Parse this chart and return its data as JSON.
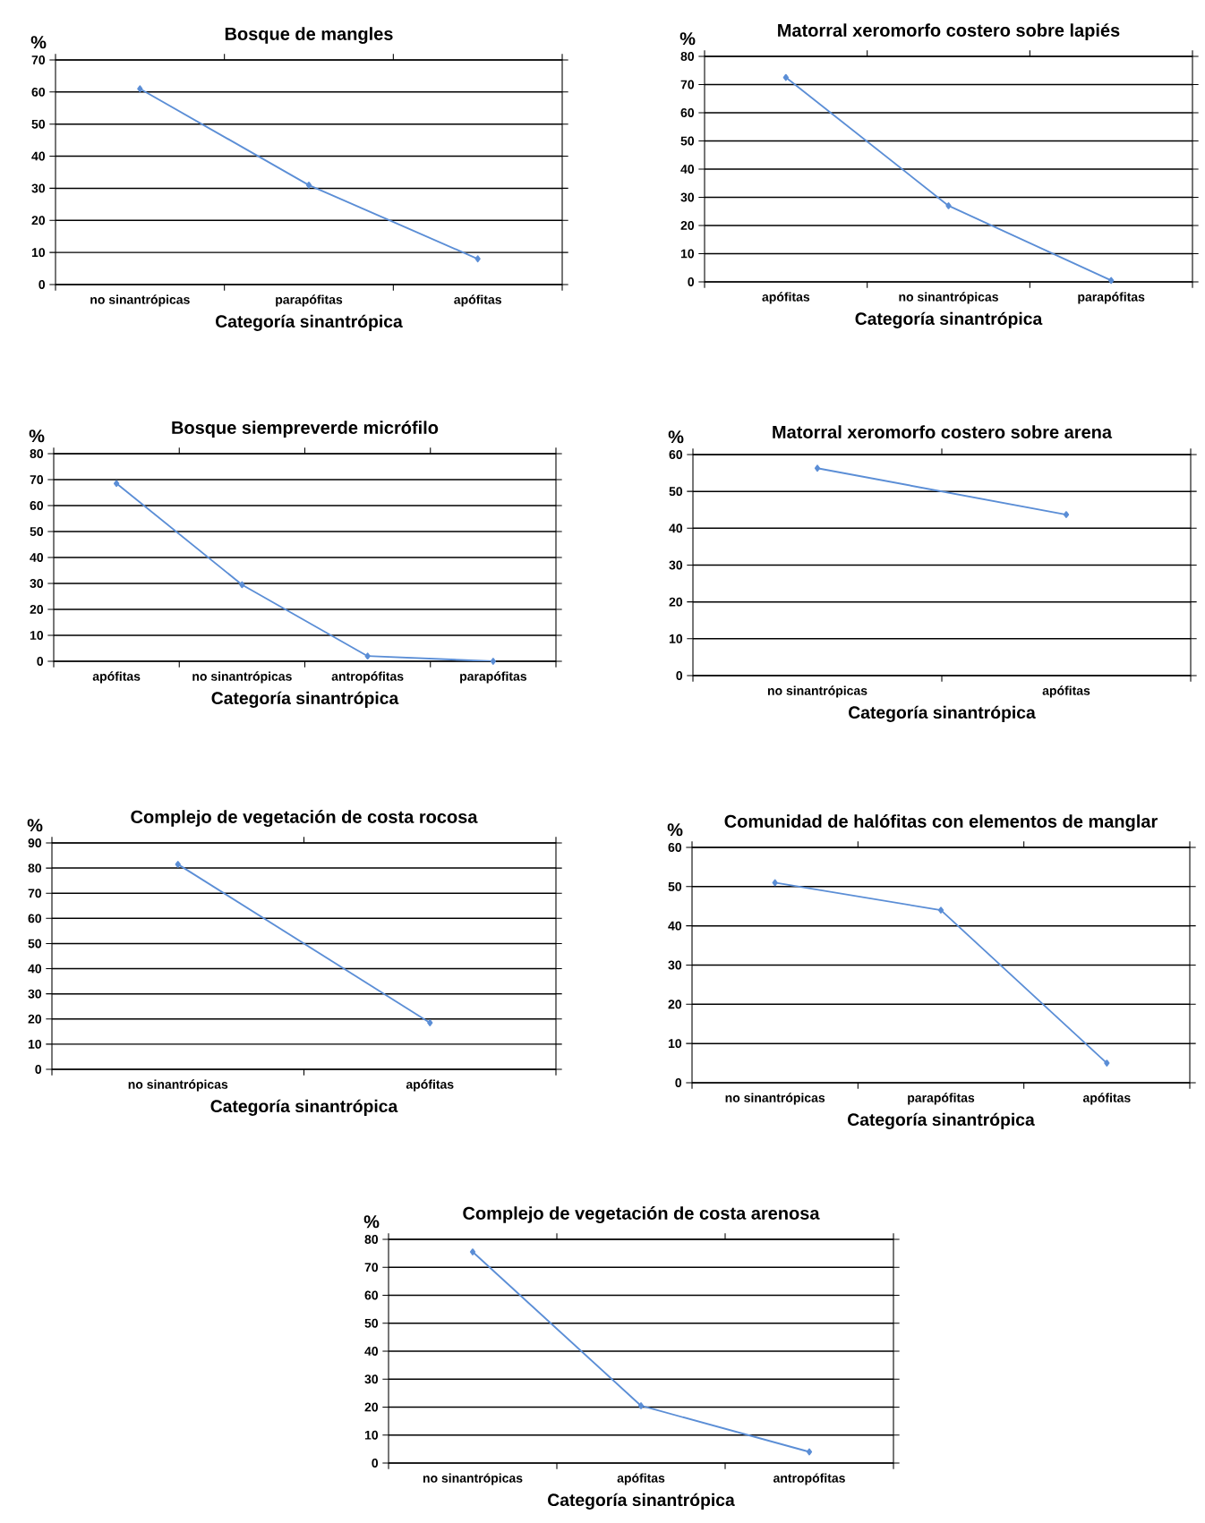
{
  "chart_data": [
    {
      "type": "line",
      "title": "Bosque de mangles",
      "xlabel": "Categoría sinantrópica",
      "ylabel": "%",
      "categories": [
        "no sinantrópicas",
        "parapófitas",
        "apófitas"
      ],
      "values": [
        61,
        31,
        8
      ],
      "color": "#5b8ed6",
      "ylim": [
        0,
        70
      ],
      "yticks": [
        0,
        10,
        20,
        30,
        40,
        50,
        60,
        70
      ],
      "grid": "y",
      "marker": "diamond"
    },
    {
      "type": "line",
      "title": "Matorral xeromorfo costero sobre lapiés",
      "xlabel": "Categoría sinantrópica",
      "ylabel": "%",
      "categories": [
        "apófitas",
        "no sinantrópicas",
        "parapófitas"
      ],
      "values": [
        72.5,
        27,
        0.5
      ],
      "color": "#5b8ed6",
      "ylim": [
        0,
        80
      ],
      "yticks": [
        0,
        10,
        20,
        30,
        40,
        50,
        60,
        70,
        80
      ],
      "grid": "y",
      "marker": "diamond"
    },
    {
      "type": "line",
      "title": "Bosque siempreverde micrófilo",
      "xlabel": "Categoría sinantrópica",
      "ylabel": "%",
      "categories": [
        "apófitas",
        "no sinantrópicas",
        "antropófitas",
        "parapófitas"
      ],
      "values": [
        68.5,
        29.5,
        2,
        0
      ],
      "color": "#5b8ed6",
      "ylim": [
        0,
        80
      ],
      "yticks": [
        0,
        10,
        20,
        30,
        40,
        50,
        60,
        70,
        80
      ],
      "grid": "y",
      "marker": "diamond"
    },
    {
      "type": "line",
      "title": "Matorral xeromorfo costero sobre arena",
      "xlabel": "Categoría sinantrópica",
      "ylabel": "%",
      "categories": [
        "no sinantrópicas",
        "apófitas"
      ],
      "values": [
        56.3,
        43.7
      ],
      "color": "#5b8ed6",
      "ylim": [
        0,
        60
      ],
      "yticks": [
        0,
        10,
        20,
        30,
        40,
        50,
        60
      ],
      "grid": "y",
      "marker": "diamond"
    },
    {
      "type": "line",
      "title": "Complejo de vegetación de costa rocosa",
      "xlabel": "Categoría sinantrópica",
      "ylabel": "%",
      "categories": [
        "no sinantrópicas",
        "apófitas"
      ],
      "values": [
        81.5,
        18.5
      ],
      "color": "#5b8ed6",
      "ylim": [
        0,
        90
      ],
      "yticks": [
        0,
        10,
        20,
        30,
        40,
        50,
        60,
        70,
        80,
        90
      ],
      "grid": "y",
      "marker": "diamond"
    },
    {
      "type": "line",
      "title": "Comunidad de halófitas con elementos de manglar",
      "xlabel": "Categoría sinantrópica",
      "ylabel": "%",
      "categories": [
        "no sinantrópicas",
        "parapófitas",
        "apófitas"
      ],
      "values": [
        51,
        44,
        5
      ],
      "color": "#5b8ed6",
      "ylim": [
        0,
        60
      ],
      "yticks": [
        0,
        10,
        20,
        30,
        40,
        50,
        60
      ],
      "grid": "y",
      "marker": "diamond"
    },
    {
      "type": "line",
      "title": "Complejo de vegetación de costa arenosa",
      "xlabel": "Categoría sinantrópica",
      "ylabel": "%",
      "categories": [
        "no sinantrópicas",
        "apófitas",
        "antropófitas"
      ],
      "values": [
        75.5,
        20.5,
        4
      ],
      "color": "#5b8ed6",
      "ylim": [
        0,
        80
      ],
      "yticks": [
        0,
        10,
        20,
        30,
        40,
        50,
        60,
        70,
        80
      ],
      "grid": "y",
      "marker": "diamond"
    }
  ]
}
